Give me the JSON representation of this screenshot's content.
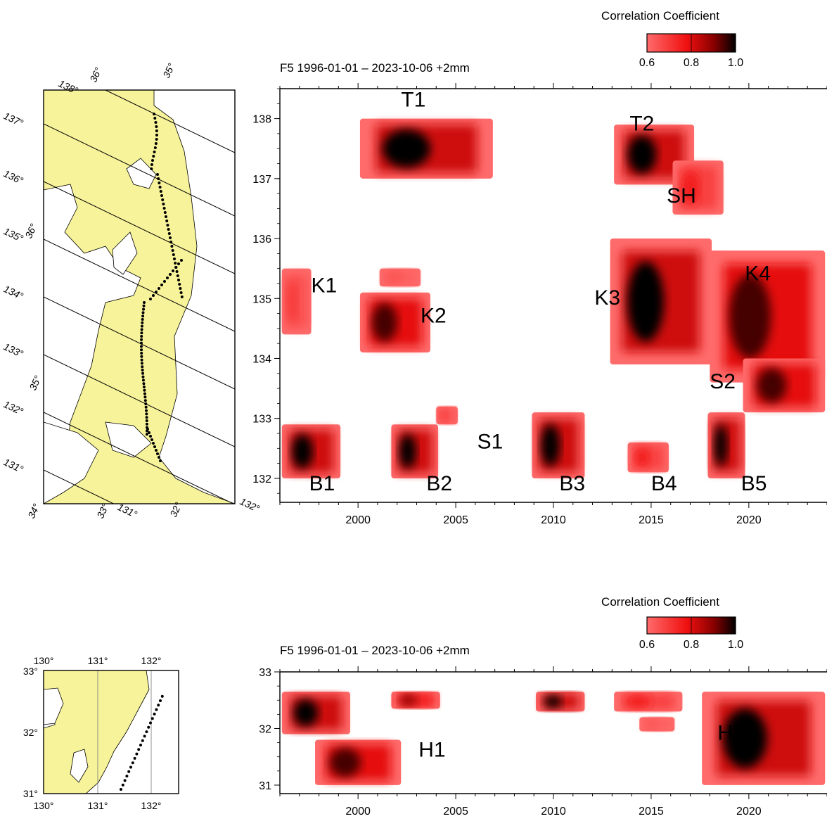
{
  "colors": {
    "land": "#f7f39a",
    "sea": "#ffffff",
    "scale_low": "#ff5a5a",
    "scale_high": "#000000",
    "axis": "#000000"
  },
  "chart_data": [
    {
      "type": "heatmap",
      "title": "F5 1996-01-01 – 2023-10-06  +2mm",
      "colorbar": {
        "label": "Correlation Coefficient",
        "ticks": [
          "0.6",
          "0.8",
          "1.0"
        ],
        "range": [
          0.6,
          1.0
        ]
      },
      "xlim": [
        1996,
        2024
      ],
      "ylim": [
        131.6,
        138.5
      ],
      "xticks": [
        2000,
        2005,
        2010,
        2015,
        2020
      ],
      "yticks": [
        132,
        133,
        134,
        135,
        136,
        137,
        138
      ],
      "xlabel": "",
      "ylabel": "",
      "patches": [
        {
          "x": [
            2000.1,
            2006.9
          ],
          "y": [
            137.0,
            138.0
          ],
          "peak": 1.0
        },
        {
          "x": [
            2013.1,
            2017.2
          ],
          "y": [
            136.9,
            137.9
          ],
          "peak": 1.0
        },
        {
          "x": [
            2016.1,
            2018.7
          ],
          "y": [
            136.4,
            137.3
          ],
          "peak": 0.75
        },
        {
          "x": [
            2012.9,
            2018.1
          ],
          "y": [
            133.9,
            136.0
          ],
          "peak": 1.0
        },
        {
          "x": [
            2018.0,
            2023.9
          ],
          "y": [
            133.6,
            135.8
          ],
          "peak": 0.95
        },
        {
          "x": [
            2019.7,
            2023.9
          ],
          "y": [
            133.1,
            134.0
          ],
          "peak": 0.95
        },
        {
          "x": [
            1996.1,
            1997.6
          ],
          "y": [
            134.4,
            135.5
          ],
          "peak": 0.7
        },
        {
          "x": [
            2000.1,
            2003.7
          ],
          "y": [
            134.1,
            135.1
          ],
          "peak": 0.95
        },
        {
          "x": [
            2001.1,
            2003.2
          ],
          "y": [
            135.2,
            135.5
          ],
          "peak": 0.65
        },
        {
          "x": [
            1996.1,
            1999.1
          ],
          "y": [
            132.0,
            132.9
          ],
          "peak": 1.0
        },
        {
          "x": [
            2001.7,
            2004.1
          ],
          "y": [
            132.0,
            132.9
          ],
          "peak": 1.0
        },
        {
          "x": [
            2004.0,
            2005.1
          ],
          "y": [
            132.9,
            133.2
          ],
          "peak": 0.7
        },
        {
          "x": [
            2008.9,
            2011.6
          ],
          "y": [
            132.0,
            133.1
          ],
          "peak": 1.0
        },
        {
          "x": [
            2013.8,
            2015.9
          ],
          "y": [
            132.1,
            132.6
          ],
          "peak": 0.75
        },
        {
          "x": [
            2017.9,
            2019.8
          ],
          "y": [
            132.0,
            133.1
          ],
          "peak": 1.0
        }
      ],
      "annotations": [
        {
          "label": "T1",
          "x": 2002.2,
          "y": 138.2
        },
        {
          "label": "T2",
          "x": 2013.9,
          "y": 137.8
        },
        {
          "label": "SH",
          "x": 2015.8,
          "y": 136.6
        },
        {
          "label": "K1",
          "x": 1997.6,
          "y": 135.1
        },
        {
          "label": "K2",
          "x": 2003.2,
          "y": 134.6
        },
        {
          "label": "K3",
          "x": 2012.1,
          "y": 134.9
        },
        {
          "label": "K4",
          "x": 2019.8,
          "y": 135.3
        },
        {
          "label": "S1",
          "x": 2006.1,
          "y": 132.5
        },
        {
          "label": "S2",
          "x": 2018.0,
          "y": 133.5
        },
        {
          "label": "B1",
          "x": 1997.5,
          "y": 131.8
        },
        {
          "label": "B2",
          "x": 2003.5,
          "y": 131.8
        },
        {
          "label": "B3",
          "x": 2010.3,
          "y": 131.8
        },
        {
          "label": "B4",
          "x": 2015.0,
          "y": 131.8
        },
        {
          "label": "B5",
          "x": 2019.6,
          "y": 131.8
        }
      ]
    },
    {
      "type": "heatmap",
      "title": "F5 1996-01-01 – 2023-10-06  +2mm",
      "colorbar": {
        "label": "Correlation Coefficient",
        "ticks": [
          "0.6",
          "0.8",
          "1.0"
        ],
        "range": [
          0.6,
          1.0
        ]
      },
      "xlim": [
        1996,
        2024
      ],
      "ylim": [
        30.85,
        33.0
      ],
      "xticks": [
        2000,
        2005,
        2010,
        2015,
        2020
      ],
      "yticks": [
        31,
        32,
        33
      ],
      "xlabel": "",
      "ylabel": "",
      "patches": [
        {
          "x": [
            1996.1,
            1999.6
          ],
          "y": [
            31.9,
            32.65
          ],
          "peak": 1.0
        },
        {
          "x": [
            1997.8,
            2002.2
          ],
          "y": [
            31.0,
            31.8
          ],
          "peak": 0.95
        },
        {
          "x": [
            2001.7,
            2004.2
          ],
          "y": [
            32.35,
            32.65
          ],
          "peak": 0.9
        },
        {
          "x": [
            2009.1,
            2011.6
          ],
          "y": [
            32.3,
            32.65
          ],
          "peak": 1.0
        },
        {
          "x": [
            2013.1,
            2016.6
          ],
          "y": [
            32.3,
            32.65
          ],
          "peak": 0.75
        },
        {
          "x": [
            2014.4,
            2016.2
          ],
          "y": [
            31.95,
            32.2
          ],
          "peak": 0.65
        },
        {
          "x": [
            2017.6,
            2023.9
          ],
          "y": [
            31.0,
            32.65
          ],
          "peak": 1.0
        }
      ],
      "annotations": [
        {
          "label": "H1",
          "x": 2003.1,
          "y": 31.5
        },
        {
          "label": "H2",
          "x": 2018.4,
          "y": 31.8
        }
      ]
    }
  ],
  "map_top": {
    "lat_labels": [
      "138°",
      "137°",
      "136°",
      "135°",
      "134°",
      "133°",
      "132°",
      "131°"
    ],
    "lon_labels_top": [
      "36°",
      "35°"
    ],
    "lon_labels_left": [
      "36°",
      "35°"
    ],
    "bottom_labels": [
      "34°",
      "33°",
      "131°",
      "32°",
      "132°"
    ]
  },
  "map_bottom": {
    "x_ticks": [
      "130°",
      "131°",
      "132°"
    ],
    "y_ticks": [
      "33°",
      "32°",
      "31°"
    ]
  }
}
